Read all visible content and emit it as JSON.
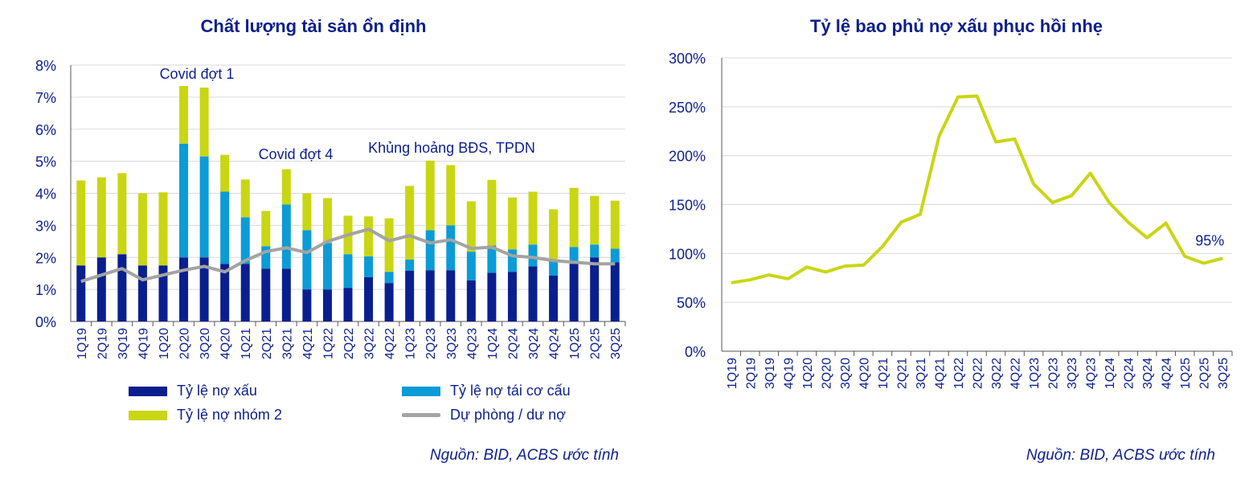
{
  "colors": {
    "npl": "#0a1f8f",
    "restructured": "#0b9bd6",
    "group2": "#c9d613",
    "provision": "#a3a3a3",
    "coverage": "#c9d613",
    "text": "#0c1f8c",
    "grid": "#d9d9d9"
  },
  "left_chart": {
    "title": "Chất lượng tài sản ổn định",
    "source": "Nguồn: BID, ACBS ước tính"
  },
  "right_chart": {
    "title": "Tỷ lệ bao phủ nợ xấu phục hồi nhẹ",
    "source": "Nguồn: BID, ACBS ước tính"
  },
  "chart_data": [
    {
      "type": "bar",
      "title": "Chất lượng tài sản ổn định",
      "stacked": true,
      "categories": [
        "1Q19",
        "2Q19",
        "3Q19",
        "4Q19",
        "1Q20",
        "2Q20",
        "3Q20",
        "4Q20",
        "1Q21",
        "2Q21",
        "3Q21",
        "4Q21",
        "1Q22",
        "2Q22",
        "3Q22",
        "4Q22",
        "1Q23",
        "2Q23",
        "3Q23",
        "4Q23",
        "1Q24",
        "2Q24",
        "3Q24",
        "4Q24",
        "1Q25",
        "2Q25",
        "3Q25"
      ],
      "series": [
        {
          "name": "Tỷ lệ nợ xấu",
          "type": "bar",
          "values": [
            1.75,
            2.0,
            2.1,
            1.75,
            1.75,
            2.0,
            2.0,
            1.8,
            1.8,
            1.65,
            1.65,
            1.0,
            1.0,
            1.05,
            1.38,
            1.2,
            1.58,
            1.6,
            1.6,
            1.28,
            1.52,
            1.55,
            1.72,
            1.43,
            1.8,
            2.0,
            1.85
          ]
        },
        {
          "name": "Tỷ lệ nợ tái cơ cấu",
          "type": "bar",
          "values": [
            0.0,
            0.0,
            0.0,
            0.0,
            0.0,
            3.55,
            3.15,
            2.25,
            1.45,
            0.7,
            2.0,
            1.85,
            1.45,
            1.05,
            0.65,
            0.35,
            0.35,
            1.25,
            1.4,
            0.9,
            0.85,
            0.7,
            0.68,
            0.45,
            0.52,
            0.4,
            0.42
          ]
        },
        {
          "name": "Tỷ lệ nợ nhóm 2",
          "type": "bar",
          "values": [
            2.65,
            2.5,
            2.53,
            2.25,
            2.28,
            1.8,
            2.15,
            1.15,
            1.18,
            1.1,
            1.1,
            1.15,
            1.4,
            1.2,
            1.25,
            1.67,
            2.3,
            2.17,
            1.88,
            1.57,
            2.05,
            1.62,
            1.65,
            1.62,
            1.85,
            1.52,
            1.5
          ]
        },
        {
          "name": "Dự phòng / dư nợ",
          "type": "line",
          "values": [
            1.25,
            1.45,
            1.65,
            1.3,
            1.45,
            1.6,
            1.72,
            1.55,
            1.9,
            2.18,
            2.3,
            2.15,
            2.5,
            2.7,
            2.88,
            2.52,
            2.68,
            2.45,
            2.55,
            2.28,
            2.32,
            2.05,
            2.0,
            1.9,
            1.85,
            1.8,
            1.8
          ]
        }
      ],
      "ylim": [
        0,
        8
      ],
      "yticks": [
        "0%",
        "1%",
        "2%",
        "3%",
        "4%",
        "5%",
        "6%",
        "7%",
        "8%"
      ],
      "grid": true,
      "legend": "bottom",
      "annotations": [
        {
          "text": "Covid đợt 1",
          "at": "2Q20"
        },
        {
          "text": "Covid đợt 4",
          "at": "2Q21"
        },
        {
          "text": "Khủng hoảng BĐS, TPDN",
          "at": "3Q22"
        }
      ]
    },
    {
      "type": "line",
      "title": "Tỷ lệ bao phủ nợ xấu phục hồi nhẹ",
      "categories": [
        "1Q19",
        "2Q19",
        "3Q19",
        "4Q19",
        "1Q20",
        "2Q20",
        "3Q20",
        "4Q20",
        "1Q21",
        "2Q21",
        "3Q21",
        "4Q21",
        "1Q22",
        "2Q22",
        "3Q22",
        "4Q22",
        "1Q23",
        "2Q23",
        "3Q23",
        "4Q23",
        "1Q24",
        "2Q24",
        "3Q24",
        "4Q24",
        "1Q25",
        "2Q25",
        "3Q25"
      ],
      "series": [
        {
          "name": "Tỷ lệ bao phủ nợ xấu",
          "values": [
            70,
            73,
            78,
            74,
            86,
            81,
            87,
            88,
            107,
            132,
            140,
            220,
            260,
            261,
            214,
            217,
            171,
            152,
            159,
            182,
            152,
            132,
            116,
            131,
            97,
            90,
            95
          ]
        }
      ],
      "ylim": [
        0,
        300
      ],
      "yticks": [
        "0%",
        "50%",
        "100%",
        "150%",
        "200%",
        "250%",
        "300%"
      ],
      "grid": true,
      "annotations": [
        {
          "text": "95%",
          "at": "3Q25"
        }
      ]
    }
  ]
}
